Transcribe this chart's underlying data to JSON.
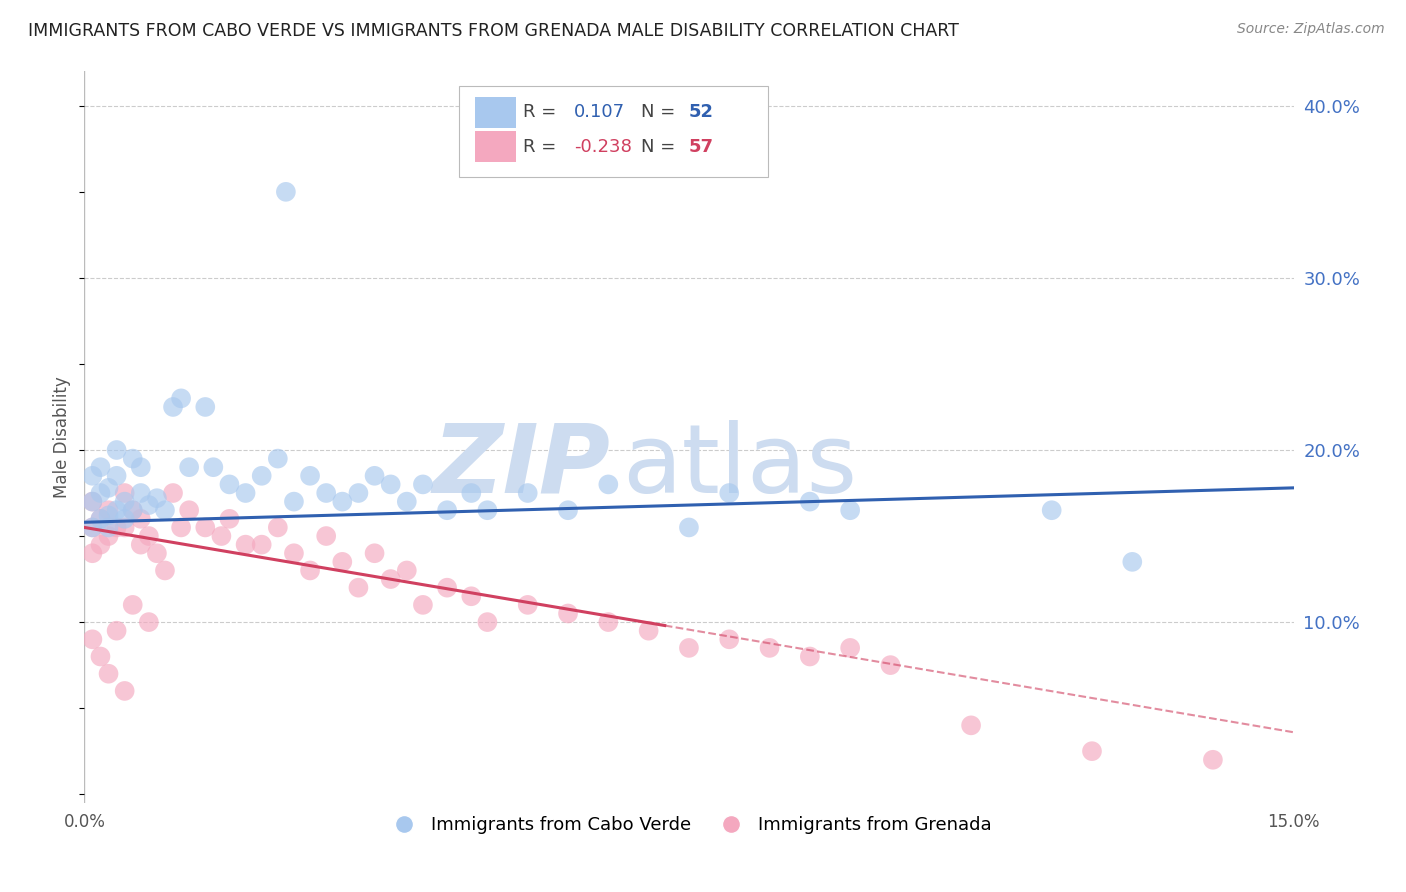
{
  "title": "IMMIGRANTS FROM CABO VERDE VS IMMIGRANTS FROM GRENADA MALE DISABILITY CORRELATION CHART",
  "source": "Source: ZipAtlas.com",
  "ylabel": "Male Disability",
  "xlim": [
    0.0,
    0.15
  ],
  "ylim": [
    -0.005,
    0.42
  ],
  "cabo_verde_R": 0.107,
  "cabo_verde_N": 52,
  "grenada_R": -0.238,
  "grenada_N": 57,
  "cabo_verde_color": "#a8c8ee",
  "grenada_color": "#f4a8bf",
  "cabo_verde_line_color": "#3060b0",
  "grenada_line_color": "#d04060",
  "watermark_zip": "ZIP",
  "watermark_atlas": "atlas",
  "watermark_color_zip": "#c8d8f0",
  "watermark_color_atlas": "#c8d8f0",
  "background_color": "#ffffff",
  "grid_color": "#cccccc",
  "ytick_color": "#4472c4",
  "xtick_color": "#555555",
  "cabo_verde_x": [
    0.001,
    0.001,
    0.001,
    0.002,
    0.002,
    0.002,
    0.003,
    0.003,
    0.003,
    0.004,
    0.004,
    0.004,
    0.005,
    0.005,
    0.006,
    0.006,
    0.007,
    0.007,
    0.008,
    0.009,
    0.01,
    0.011,
    0.012,
    0.013,
    0.015,
    0.016,
    0.018,
    0.02,
    0.022,
    0.024,
    0.025,
    0.026,
    0.028,
    0.03,
    0.032,
    0.034,
    0.036,
    0.038,
    0.04,
    0.042,
    0.045,
    0.048,
    0.05,
    0.055,
    0.06,
    0.065,
    0.075,
    0.08,
    0.09,
    0.095,
    0.12,
    0.13
  ],
  "cabo_verde_y": [
    0.155,
    0.17,
    0.185,
    0.16,
    0.175,
    0.19,
    0.162,
    0.178,
    0.155,
    0.165,
    0.2,
    0.185,
    0.17,
    0.16,
    0.195,
    0.165,
    0.175,
    0.19,
    0.168,
    0.172,
    0.165,
    0.225,
    0.23,
    0.19,
    0.225,
    0.19,
    0.18,
    0.175,
    0.185,
    0.195,
    0.35,
    0.17,
    0.185,
    0.175,
    0.17,
    0.175,
    0.185,
    0.18,
    0.17,
    0.18,
    0.165,
    0.175,
    0.165,
    0.175,
    0.165,
    0.18,
    0.155,
    0.175,
    0.17,
    0.165,
    0.165,
    0.135
  ],
  "grenada_x": [
    0.001,
    0.001,
    0.001,
    0.001,
    0.002,
    0.002,
    0.002,
    0.003,
    0.003,
    0.003,
    0.004,
    0.004,
    0.005,
    0.005,
    0.005,
    0.006,
    0.006,
    0.007,
    0.007,
    0.008,
    0.008,
    0.009,
    0.01,
    0.011,
    0.012,
    0.013,
    0.015,
    0.017,
    0.018,
    0.02,
    0.022,
    0.024,
    0.026,
    0.028,
    0.03,
    0.032,
    0.034,
    0.036,
    0.038,
    0.04,
    0.042,
    0.045,
    0.048,
    0.05,
    0.055,
    0.06,
    0.065,
    0.07,
    0.075,
    0.08,
    0.085,
    0.09,
    0.095,
    0.1,
    0.11,
    0.125,
    0.14
  ],
  "grenada_y": [
    0.17,
    0.155,
    0.14,
    0.09,
    0.16,
    0.145,
    0.08,
    0.165,
    0.15,
    0.07,
    0.155,
    0.095,
    0.175,
    0.155,
    0.06,
    0.165,
    0.11,
    0.16,
    0.145,
    0.15,
    0.1,
    0.14,
    0.13,
    0.175,
    0.155,
    0.165,
    0.155,
    0.15,
    0.16,
    0.145,
    0.145,
    0.155,
    0.14,
    0.13,
    0.15,
    0.135,
    0.12,
    0.14,
    0.125,
    0.13,
    0.11,
    0.12,
    0.115,
    0.1,
    0.11,
    0.105,
    0.1,
    0.095,
    0.085,
    0.09,
    0.085,
    0.08,
    0.085,
    0.075,
    0.04,
    0.025,
    0.02
  ],
  "cabo_line_x0": 0.0,
  "cabo_line_y0": 0.158,
  "cabo_line_x1": 0.15,
  "cabo_line_y1": 0.178,
  "grenada_line_solid_x0": 0.0,
  "grenada_line_solid_y0": 0.155,
  "grenada_line_solid_x1": 0.072,
  "grenada_line_solid_y1": 0.098,
  "grenada_line_dash_x0": 0.072,
  "grenada_line_dash_y0": 0.098,
  "grenada_line_dash_x1": 0.15,
  "grenada_line_dash_y1": 0.036
}
